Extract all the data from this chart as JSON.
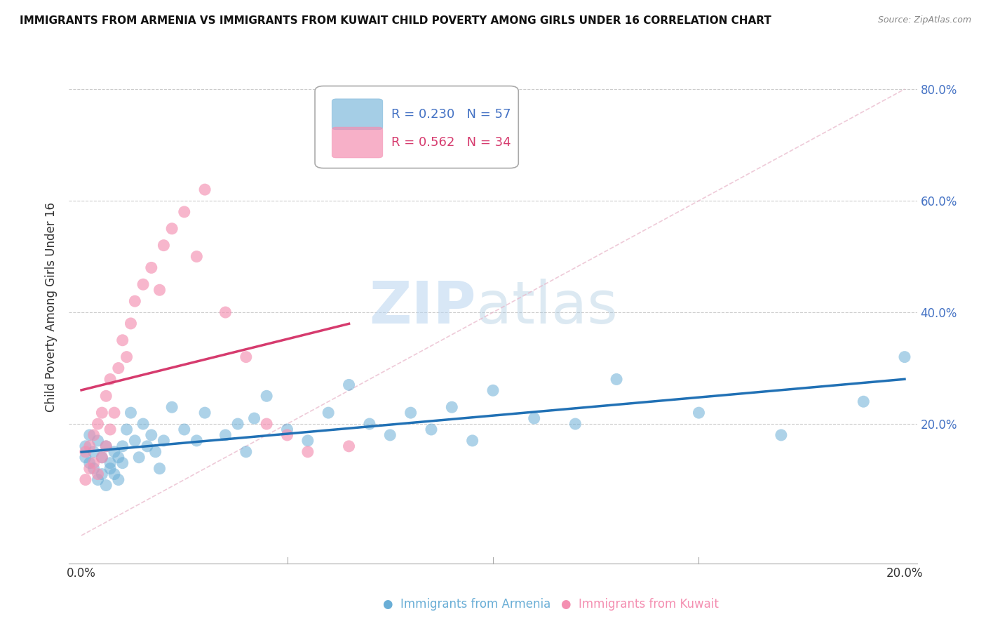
{
  "title": "IMMIGRANTS FROM ARMENIA VS IMMIGRANTS FROM KUWAIT CHILD POVERTY AMONG GIRLS UNDER 16 CORRELATION CHART",
  "source": "Source: ZipAtlas.com",
  "ylabel": "Child Poverty Among Girls Under 16",
  "armenia_R": "0.230",
  "armenia_N": "57",
  "kuwait_R": "0.562",
  "kuwait_N": "34",
  "armenia_color": "#6aaed6",
  "kuwait_color": "#f48fb1",
  "armenia_line_color": "#2171b5",
  "kuwait_line_color": "#d63b6e",
  "watermark_zip": "ZIP",
  "watermark_atlas": "atlas",
  "background_color": "#ffffff",
  "grid_color": "#cccccc",
  "armenia_scatter_x": [
    0.001,
    0.001,
    0.002,
    0.002,
    0.003,
    0.003,
    0.004,
    0.004,
    0.005,
    0.005,
    0.006,
    0.006,
    0.007,
    0.007,
    0.008,
    0.008,
    0.009,
    0.009,
    0.01,
    0.01,
    0.011,
    0.012,
    0.013,
    0.014,
    0.015,
    0.016,
    0.017,
    0.018,
    0.019,
    0.02,
    0.022,
    0.025,
    0.028,
    0.03,
    0.035,
    0.038,
    0.04,
    0.042,
    0.045,
    0.05,
    0.055,
    0.06,
    0.065,
    0.07,
    0.075,
    0.08,
    0.085,
    0.09,
    0.095,
    0.1,
    0.11,
    0.12,
    0.13,
    0.15,
    0.17,
    0.19,
    0.2
  ],
  "armenia_scatter_y": [
    0.14,
    0.16,
    0.13,
    0.18,
    0.12,
    0.15,
    0.1,
    0.17,
    0.11,
    0.14,
    0.09,
    0.16,
    0.13,
    0.12,
    0.15,
    0.11,
    0.14,
    0.1,
    0.16,
    0.13,
    0.19,
    0.22,
    0.17,
    0.14,
    0.2,
    0.16,
    0.18,
    0.15,
    0.12,
    0.17,
    0.23,
    0.19,
    0.17,
    0.22,
    0.18,
    0.2,
    0.15,
    0.21,
    0.25,
    0.19,
    0.17,
    0.22,
    0.27,
    0.2,
    0.18,
    0.22,
    0.19,
    0.23,
    0.17,
    0.26,
    0.21,
    0.2,
    0.28,
    0.22,
    0.18,
    0.24,
    0.32
  ],
  "kuwait_scatter_x": [
    0.001,
    0.001,
    0.002,
    0.002,
    0.003,
    0.003,
    0.004,
    0.004,
    0.005,
    0.005,
    0.006,
    0.006,
    0.007,
    0.007,
    0.008,
    0.009,
    0.01,
    0.011,
    0.012,
    0.013,
    0.015,
    0.017,
    0.019,
    0.02,
    0.022,
    0.025,
    0.028,
    0.03,
    0.035,
    0.04,
    0.045,
    0.05,
    0.055,
    0.065
  ],
  "kuwait_scatter_y": [
    0.1,
    0.15,
    0.12,
    0.16,
    0.13,
    0.18,
    0.11,
    0.2,
    0.14,
    0.22,
    0.16,
    0.25,
    0.19,
    0.28,
    0.22,
    0.3,
    0.35,
    0.32,
    0.38,
    0.42,
    0.45,
    0.48,
    0.44,
    0.52,
    0.55,
    0.58,
    0.5,
    0.62,
    0.4,
    0.32,
    0.2,
    0.18,
    0.15,
    0.16
  ]
}
